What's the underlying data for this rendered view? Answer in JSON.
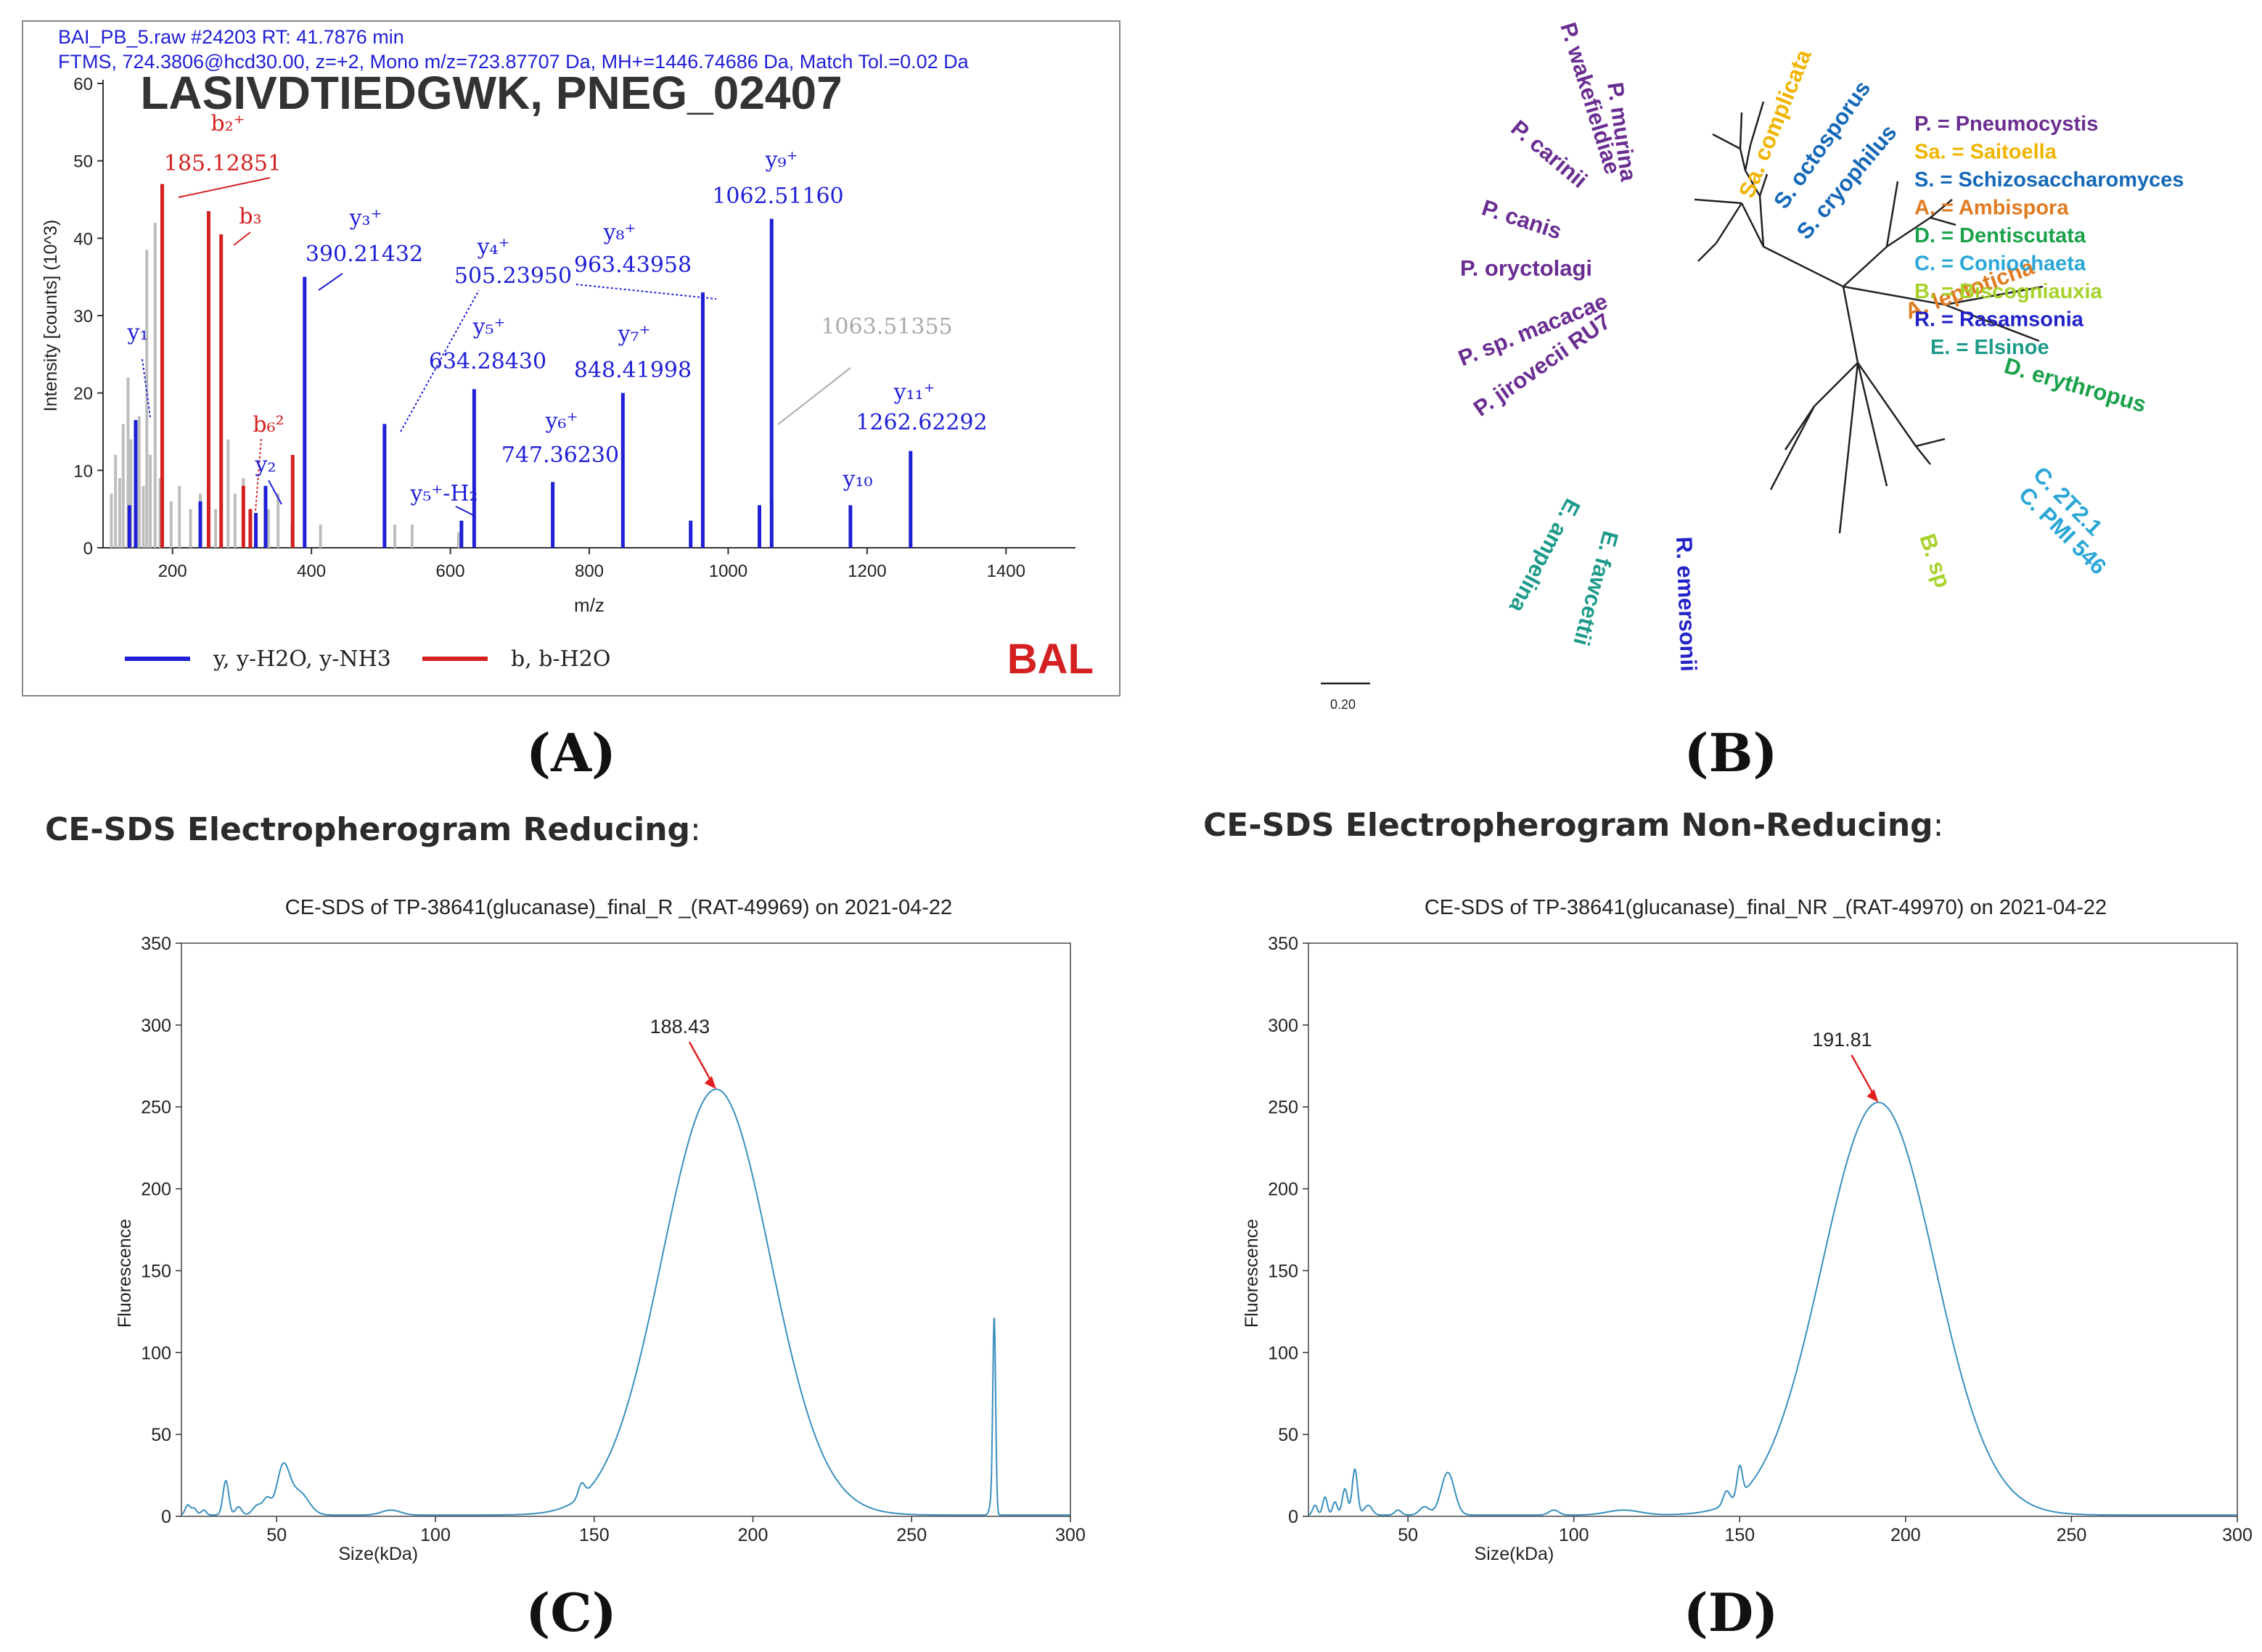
{
  "figure_labels": {
    "A": "(A)",
    "B": "(B)",
    "C": "(C)",
    "D": "(D)"
  },
  "section_titles": {
    "reducing": "CE-SDS Electropherogram Reducing",
    "nonreducing": "CE-SDS Electropherogram Non-Reducing",
    "colon": ":"
  },
  "colors": {
    "blue": "#1f1fd6",
    "red": "#d42020",
    "gray": "#bdbdbd",
    "ce_line": "#3a8fbd",
    "arrow": "#e02020"
  },
  "chart_data": [
    {
      "id": "A",
      "type": "bar",
      "header_line1": "BAI_PB_5.raw  #24203  RT: 41.7876 min",
      "header_line2": "FTMS, 724.3806@hcd30.00, z=+2, Mono m/z=723.87707 Da, MH+=1446.74686 Da, Match Tol.=0.02 Da",
      "title": "LASIVDTIEDGWK, PNEG_02407",
      "xlabel": "m/z",
      "ylabel": "Intensity [counts] (10^3)",
      "xlim": [
        100,
        1500
      ],
      "ylim": [
        0,
        60
      ],
      "xticks": [
        200,
        400,
        600,
        800,
        1000,
        1200,
        1400
      ],
      "yticks": [
        0,
        10,
        20,
        30,
        40,
        50,
        60
      ],
      "tag": "BAL",
      "legend": [
        {
          "label": "y, y-H2O, y-NH3",
          "color": "#1f1fd6"
        },
        {
          "label": "b, b-H2O",
          "color": "#d42020"
        }
      ],
      "gray_peaks": [
        {
          "mz": 112,
          "i": 7
        },
        {
          "mz": 118,
          "i": 12
        },
        {
          "mz": 124,
          "i": 9
        },
        {
          "mz": 129,
          "i": 16
        },
        {
          "mz": 136,
          "i": 22
        },
        {
          "mz": 140,
          "i": 14
        },
        {
          "mz": 147,
          "i": 10
        },
        {
          "mz": 152,
          "i": 17
        },
        {
          "mz": 158,
          "i": 8
        },
        {
          "mz": 163,
          "i": 38.5
        },
        {
          "mz": 168,
          "i": 12
        },
        {
          "mz": 175,
          "i": 42
        },
        {
          "mz": 182,
          "i": 9
        },
        {
          "mz": 198,
          "i": 6
        },
        {
          "mz": 210,
          "i": 8
        },
        {
          "mz": 226,
          "i": 5
        },
        {
          "mz": 240,
          "i": 7
        },
        {
          "mz": 252,
          "i": 4
        },
        {
          "mz": 262,
          "i": 5
        },
        {
          "mz": 280,
          "i": 14
        },
        {
          "mz": 290,
          "i": 7
        },
        {
          "mz": 302,
          "i": 9
        },
        {
          "mz": 312,
          "i": 4
        },
        {
          "mz": 338,
          "i": 5
        },
        {
          "mz": 352,
          "i": 7
        },
        {
          "mz": 372,
          "i": 3
        },
        {
          "mz": 413,
          "i": 3
        },
        {
          "mz": 520,
          "i": 3
        },
        {
          "mz": 545,
          "i": 3
        },
        {
          "mz": 612,
          "i": 2
        },
        {
          "mz": 1063.5,
          "i": 6
        }
      ],
      "red_peaks": [
        {
          "mz": 185.12851,
          "i": 47,
          "label": "b2+"
        },
        {
          "mz": 252,
          "i": 43.5,
          "label": ""
        },
        {
          "mz": 270,
          "i": 40.5,
          "label": "b3"
        },
        {
          "mz": 302,
          "i": 8,
          "label": ""
        },
        {
          "mz": 312,
          "i": 5,
          "label": ""
        },
        {
          "mz": 373,
          "i": 12,
          "label": ""
        }
      ],
      "blue_peaks": [
        {
          "mz": 138,
          "i": 5.5
        },
        {
          "mz": 147,
          "i": 16.5
        },
        {
          "mz": 240,
          "i": 6
        },
        {
          "mz": 320,
          "i": 4.5
        },
        {
          "mz": 334,
          "i": 8
        },
        {
          "mz": 390.21432,
          "i": 35
        },
        {
          "mz": 505.2395,
          "i": 16
        },
        {
          "mz": 616,
          "i": 3.5
        },
        {
          "mz": 634.2843,
          "i": 20.5
        },
        {
          "mz": 747.3623,
          "i": 8.5
        },
        {
          "mz": 848.41998,
          "i": 20
        },
        {
          "mz": 946,
          "i": 3.5
        },
        {
          "mz": 963.43958,
          "i": 33
        },
        {
          "mz": 1045,
          "i": 5.5
        },
        {
          "mz": 1062.5116,
          "i": 42.5
        },
        {
          "mz": 1176,
          "i": 5.5
        },
        {
          "mz": 1262.62292,
          "i": 12.5
        }
      ],
      "annotations": [
        {
          "color": "#d42020",
          "ion": "b₂⁺",
          "mass": "185.12851"
        },
        {
          "color": "#d42020",
          "ion": "b₃",
          "mass": ""
        },
        {
          "color": "#d42020",
          "ion": "b₆²",
          "mass": ""
        },
        {
          "color": "#1f1fd6",
          "ion": "y₁",
          "mass": ""
        },
        {
          "color": "#1f1fd6",
          "ion": "y₂",
          "mass": ""
        },
        {
          "color": "#1f1fd6",
          "ion": "y₃⁺",
          "mass": "390.21432"
        },
        {
          "color": "#1f1fd6",
          "ion": "y₄⁺",
          "mass": "505.23950"
        },
        {
          "color": "#1f1fd6",
          "ion": "y₅⁺",
          "mass": "634.28430"
        },
        {
          "color": "#1f1fd6",
          "ion": "y₅⁺-H₂",
          "mass": ""
        },
        {
          "color": "#1f1fd6",
          "ion": "y₆⁺",
          "mass": "747.36230"
        },
        {
          "color": "#1f1fd6",
          "ion": "y₇⁺",
          "mass": "848.41998"
        },
        {
          "color": "#1f1fd6",
          "ion": "y₈⁺",
          "mass": "963.43958"
        },
        {
          "color": "#1f1fd6",
          "ion": "y₉⁺",
          "mass": "1062.51160"
        },
        {
          "color": "#1f1fd6",
          "ion": "y₁₀",
          "mass": ""
        },
        {
          "color": "#1f1fd6",
          "ion": "y₁₁⁺",
          "mass": "1262.62292"
        },
        {
          "color": "#aaaaaa",
          "ion": "",
          "mass": "1063.51355"
        }
      ]
    },
    {
      "id": "B",
      "type": "tree",
      "scale_label": "0.20",
      "leaves": [
        {
          "name": "P. wakefieldiae",
          "color": "#6a2d91"
        },
        {
          "name": "P. murina",
          "color": "#6a2d91"
        },
        {
          "name": "P. carinii",
          "color": "#6a2d91"
        },
        {
          "name": "P. canis",
          "color": "#6a2d91"
        },
        {
          "name": "P. oryctolagi",
          "color": "#6a2d91"
        },
        {
          "name": "P. sp. macacae",
          "color": "#6a2d91"
        },
        {
          "name": "P. jirovecii RU7",
          "color": "#6a2d91"
        },
        {
          "name": "Sa. complicata",
          "color": "#f0b400"
        },
        {
          "name": "S. octosporus",
          "color": "#1568b8"
        },
        {
          "name": "S. cryophilus",
          "color": "#1568b8"
        },
        {
          "name": "A. leptoticha",
          "color": "#e07b22"
        },
        {
          "name": "D. erythropus",
          "color": "#1aa14a"
        },
        {
          "name": "C. 2T2.1",
          "color": "#2aa6d6"
        },
        {
          "name": "C. PMI 546",
          "color": "#2aa6d6"
        },
        {
          "name": "B. sp",
          "color": "#a6d22a"
        },
        {
          "name": "R. emersonii",
          "color": "#2222c8"
        },
        {
          "name": "E. fawcettii",
          "color": "#1e9a8a"
        },
        {
          "name": "E. ampelina",
          "color": "#1e9a8a"
        }
      ],
      "legend": [
        {
          "text": "P. = Pneumocystis",
          "color": "#6a2d91"
        },
        {
          "text": "Sa. = Saitoella",
          "color": "#f0b400"
        },
        {
          "text": "S. = Schizosaccharomyces",
          "color": "#1568b8"
        },
        {
          "text": "A. = Ambispora",
          "color": "#e07b22"
        },
        {
          "text": "D. = Dentiscutata",
          "color": "#1aa14a"
        },
        {
          "text": "C. = Coniochaeta",
          "color": "#2aa6d6"
        },
        {
          "text": "B. = Biscogniauxia",
          "color": "#a6d22a"
        },
        {
          "text": "R. = Rasamsonia",
          "color": "#2222c8"
        },
        {
          "text": "E. = Elsinoe",
          "color": "#1e9a8a"
        }
      ]
    },
    {
      "id": "C",
      "type": "line",
      "title": "CE-SDS of TP-38641(glucanase)_final_R _(RAT-49969) on 2021-04-22",
      "xlabel": "Size(kDa)",
      "ylabel": "Fluorescence",
      "xlim": [
        20,
        300
      ],
      "ylim": [
        0,
        350
      ],
      "xticks": [
        50,
        100,
        150,
        200,
        250,
        300
      ],
      "yticks": [
        0,
        50,
        100,
        150,
        200,
        250,
        300,
        350
      ],
      "peak_label": "188.43",
      "peak_x": 188.43,
      "peak_y": 260,
      "peak_sigma": 17,
      "extra": [
        {
          "x": 22,
          "h": 6,
          "s": 0.8
        },
        {
          "x": 24,
          "h": 4,
          "s": 0.8
        },
        {
          "x": 27,
          "h": 3,
          "s": 0.8
        },
        {
          "x": 34,
          "h": 21,
          "s": 0.9
        },
        {
          "x": 38,
          "h": 5,
          "s": 1.0
        },
        {
          "x": 44,
          "h": 6,
          "s": 1.5
        },
        {
          "x": 47,
          "h": 9,
          "s": 1.2
        },
        {
          "x": 52,
          "h": 28,
          "s": 2.0
        },
        {
          "x": 57,
          "h": 14,
          "s": 3.0
        },
        {
          "x": 86,
          "h": 3,
          "s": 3.0
        },
        {
          "x": 146,
          "h": 8,
          "s": 1.0
        },
        {
          "x": 276,
          "h": 120,
          "s": 0.45
        },
        {
          "x": 275,
          "h": 6,
          "s": 0.6
        }
      ]
    },
    {
      "id": "D",
      "type": "line",
      "title": "CE-SDS of TP-38641(glucanase)_final_NR _(RAT-49970) on 2021-04-22",
      "xlabel": "Size(kDa)",
      "ylabel": "Fluorescence",
      "xlim": [
        20,
        300
      ],
      "ylim": [
        0,
        350
      ],
      "xticks": [
        50,
        100,
        150,
        200,
        250,
        300
      ],
      "yticks": [
        0,
        50,
        100,
        150,
        200,
        250,
        300,
        350
      ],
      "peak_label": "191.81",
      "peak_x": 191.81,
      "peak_y": 252,
      "peak_sigma": 17,
      "extra": [
        {
          "x": 22,
          "h": 6,
          "s": 0.7
        },
        {
          "x": 25,
          "h": 11,
          "s": 0.7
        },
        {
          "x": 28,
          "h": 8,
          "s": 0.7
        },
        {
          "x": 31,
          "h": 16,
          "s": 0.8
        },
        {
          "x": 34,
          "h": 28,
          "s": 0.8
        },
        {
          "x": 38,
          "h": 6,
          "s": 1.2
        },
        {
          "x": 47,
          "h": 3,
          "s": 1.0
        },
        {
          "x": 55,
          "h": 5,
          "s": 1.5
        },
        {
          "x": 62,
          "h": 26,
          "s": 2.0
        },
        {
          "x": 94,
          "h": 3,
          "s": 1.5
        },
        {
          "x": 115,
          "h": 3,
          "s": 5.0
        },
        {
          "x": 146,
          "h": 8,
          "s": 1.0
        },
        {
          "x": 150,
          "h": 18,
          "s": 0.8
        }
      ]
    }
  ]
}
